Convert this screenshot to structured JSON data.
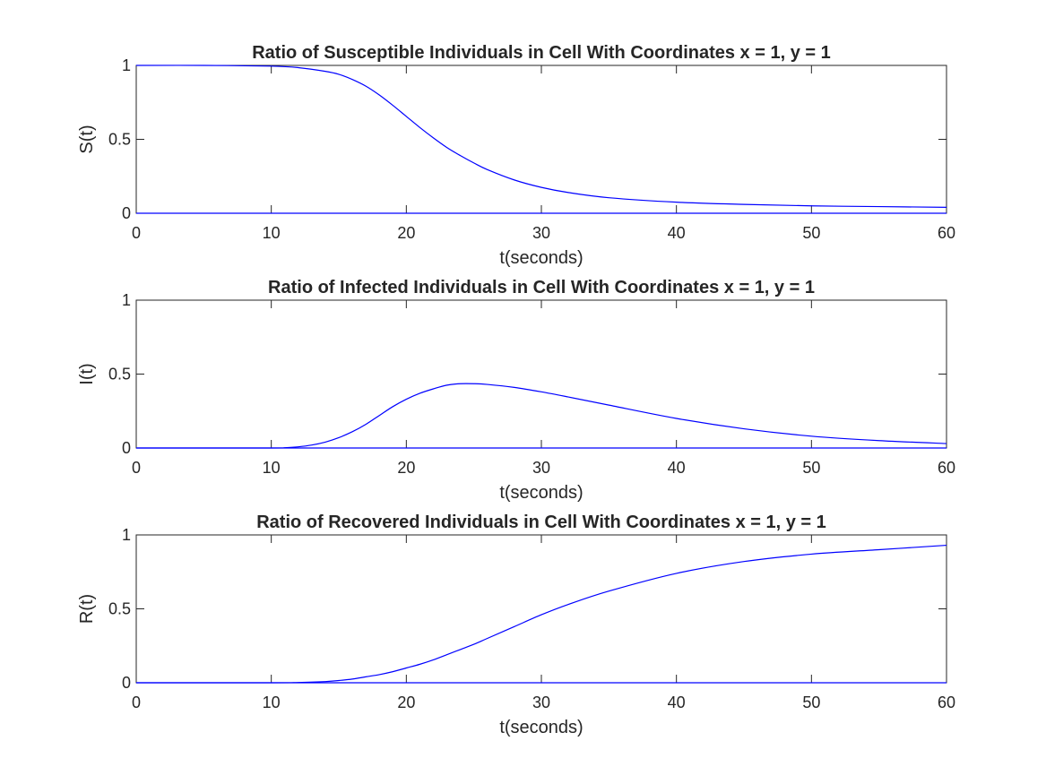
{
  "figure": {
    "background": "#ffffff",
    "axis_color": "#262626",
    "line_color": "#0000ff"
  },
  "chart_data": [
    {
      "type": "line",
      "title": "Ratio of Susceptible Individuals in Cell With Coordinates x = 1, y = 1",
      "xlabel": "t(seconds)",
      "ylabel": "S(t)",
      "xlim": [
        0,
        60
      ],
      "ylim": [
        0,
        1
      ],
      "xticks": [
        "0",
        "10",
        "20",
        "30",
        "40",
        "50",
        "60"
      ],
      "yticks": [
        "0",
        "0.5",
        "1"
      ],
      "grid": false,
      "box": true,
      "series": [
        {
          "color": "#0000ff",
          "x": [
            0,
            5,
            10,
            12,
            14,
            15,
            16,
            17,
            18,
            19,
            20,
            21,
            22,
            23,
            24,
            25,
            26,
            28,
            30,
            32,
            35,
            40,
            45,
            50,
            55,
            60
          ],
          "y": [
            1.0,
            1.0,
            0.995,
            0.985,
            0.96,
            0.94,
            0.905,
            0.86,
            0.8,
            0.73,
            0.655,
            0.58,
            0.51,
            0.445,
            0.39,
            0.34,
            0.295,
            0.225,
            0.175,
            0.14,
            0.105,
            0.075,
            0.06,
            0.05,
            0.045,
            0.04
          ]
        },
        {
          "color": "#0000ff",
          "x": [
            0,
            60
          ],
          "y": [
            0,
            0
          ]
        }
      ]
    },
    {
      "type": "line",
      "title": "Ratio of Infected Individuals in Cell With Coordinates x = 1, y = 1",
      "xlabel": "t(seconds)",
      "ylabel": "I(t)",
      "xlim": [
        0,
        60
      ],
      "ylim": [
        0,
        1
      ],
      "xticks": [
        "0",
        "10",
        "20",
        "30",
        "40",
        "50",
        "60"
      ],
      "yticks": [
        "0",
        "0.5",
        "1"
      ],
      "grid": false,
      "box": true,
      "series": [
        {
          "color": "#0000ff",
          "x": [
            0,
            10,
            11,
            12,
            13,
            14,
            15,
            16,
            17,
            18,
            19,
            20,
            21,
            22,
            23,
            24,
            25,
            26,
            28,
            30,
            32,
            35,
            40,
            45,
            50,
            55,
            60
          ],
          "y": [
            0,
            0,
            0.002,
            0.008,
            0.02,
            0.04,
            0.07,
            0.11,
            0.16,
            0.22,
            0.28,
            0.33,
            0.37,
            0.4,
            0.425,
            0.435,
            0.435,
            0.43,
            0.41,
            0.38,
            0.345,
            0.29,
            0.2,
            0.13,
            0.08,
            0.05,
            0.03
          ]
        },
        {
          "color": "#0000ff",
          "x": [
            0,
            60
          ],
          "y": [
            0,
            0
          ]
        }
      ]
    },
    {
      "type": "line",
      "title": "Ratio of Recovered Individuals in Cell With Coordinates x = 1, y = 1",
      "xlabel": "t(seconds)",
      "ylabel": "R(t)",
      "xlim": [
        0,
        60
      ],
      "ylim": [
        0,
        1
      ],
      "xticks": [
        "0",
        "10",
        "20",
        "30",
        "40",
        "50",
        "60"
      ],
      "yticks": [
        "0",
        "0.5",
        "1"
      ],
      "grid": false,
      "box": true,
      "series": [
        {
          "color": "#0000ff",
          "x": [
            0,
            10,
            12,
            14,
            15,
            16,
            17,
            18,
            19,
            20,
            21,
            22,
            23,
            24,
            25,
            26,
            28,
            30,
            32,
            35,
            40,
            45,
            50,
            55,
            60
          ],
          "y": [
            0,
            0,
            0.002,
            0.008,
            0.015,
            0.025,
            0.04,
            0.055,
            0.075,
            0.1,
            0.125,
            0.155,
            0.19,
            0.225,
            0.26,
            0.3,
            0.38,
            0.46,
            0.53,
            0.62,
            0.74,
            0.82,
            0.87,
            0.9,
            0.93
          ]
        },
        {
          "color": "#0000ff",
          "x": [
            0,
            60
          ],
          "y": [
            0,
            0
          ]
        }
      ]
    }
  ]
}
